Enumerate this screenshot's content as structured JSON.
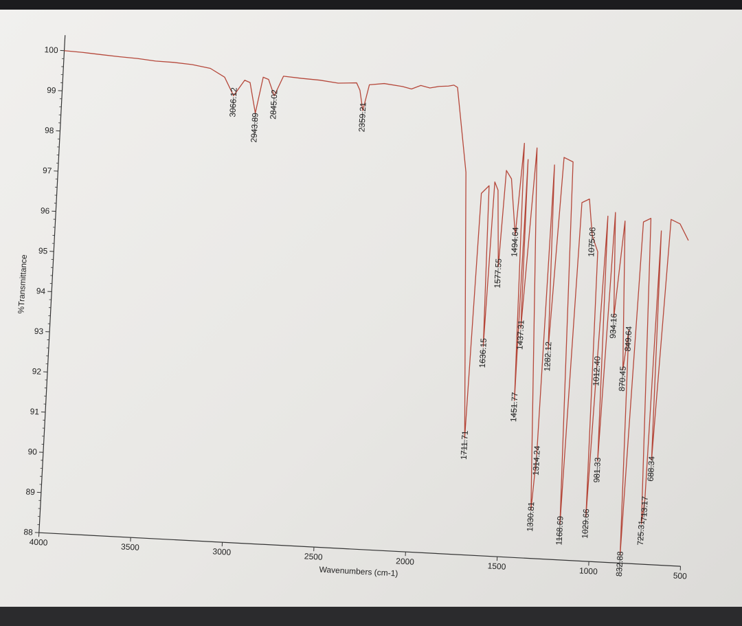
{
  "chart_data": {
    "type": "line",
    "title": "",
    "xlabel": "Wavenumbers (cm-1)",
    "ylabel": "%Transmittance",
    "xlim": [
      4000,
      500
    ],
    "ylim": [
      88,
      100.3
    ],
    "x_ticks": [
      "4000",
      "3500",
      "3000",
      "2500",
      "2000",
      "1500",
      "1000",
      "500"
    ],
    "y_ticks": [
      "100",
      "99",
      "98",
      "97",
      "96",
      "95",
      "94",
      "93",
      "92",
      "91",
      "90",
      "89",
      "88"
    ],
    "grid": false,
    "series": [
      {
        "color": "#b5473a",
        "x": [
          4000,
          3900,
          3800,
          3700,
          3600,
          3500,
          3400,
          3300,
          3200,
          3120,
          3066,
          3010,
          2980,
          2943,
          2910,
          2880,
          2845,
          2800,
          2700,
          2600,
          2500,
          2400,
          2380,
          2359,
          2330,
          2250,
          2150,
          2100,
          2050,
          2000,
          1950,
          1900,
          1870,
          1850,
          1780,
          1711,
          1690,
          1650,
          1636,
          1620,
          1600,
          1577,
          1560,
          1530,
          1494,
          1470,
          1451,
          1445,
          1437,
          1400,
          1330,
          1314,
          1300,
          1282,
          1250,
          1200,
          1168,
          1140,
          1100,
          1075,
          1040,
          1029,
          1012,
          995,
          981,
          955,
          934,
          900,
          870,
          849,
          832,
          800,
          760,
          725,
          713,
          700,
          688,
          650,
          600,
          550
        ],
        "y": [
          100.0,
          99.98,
          99.95,
          99.92,
          99.9,
          99.86,
          99.85,
          99.82,
          99.75,
          99.55,
          99.1,
          99.5,
          99.45,
          98.7,
          99.6,
          99.55,
          99.15,
          99.65,
          99.62,
          99.6,
          99.55,
          99.58,
          99.4,
          98.9,
          99.55,
          99.6,
          99.55,
          99.5,
          99.6,
          99.55,
          99.6,
          99.62,
          99.65,
          99.6,
          97.5,
          90.9,
          97.0,
          97.2,
          93.2,
          97.3,
          97.1,
          95.2,
          97.6,
          97.4,
          96.0,
          98.3,
          91.9,
          97.9,
          93.7,
          98.2,
          89.2,
          90.6,
          97.8,
          93.2,
          98.0,
          97.9,
          88.9,
          96.9,
          97.0,
          96.1,
          95.7,
          89.1,
          92.9,
          96.6,
          90.5,
          96.7,
          94.1,
          96.5,
          92.8,
          93.8,
          88.2,
          96.5,
          96.6,
          89.0,
          89.6,
          96.3,
          90.6,
          96.6,
          96.5,
          96.1
        ]
      }
    ],
    "annotations": [
      {
        "text": "3066.12",
        "x": 3066,
        "level": 98.6
      },
      {
        "text": "2943.89",
        "x": 2943,
        "level": 98.0
      },
      {
        "text": "2845.02",
        "x": 2845,
        "level": 98.6
      },
      {
        "text": "2359.21",
        "x": 2359,
        "level": 98.4
      },
      {
        "text": "1711.71",
        "x": 1711,
        "level": 90.4
      },
      {
        "text": "1636.15",
        "x": 1636,
        "level": 92.7
      },
      {
        "text": "1577.55",
        "x": 1577,
        "level": 94.7
      },
      {
        "text": "1494.64",
        "x": 1494,
        "level": 95.5
      },
      {
        "text": "1451.77",
        "x": 1451,
        "level": 91.4
      },
      {
        "text": "1437.31",
        "x": 1437,
        "level": 93.2
      },
      {
        "text": "1330.81",
        "x": 1330,
        "level": 88.7
      },
      {
        "text": "1314.24",
        "x": 1314,
        "level": 90.1
      },
      {
        "text": "1282.12",
        "x": 1282,
        "level": 92.7
      },
      {
        "text": "1168.69",
        "x": 1168,
        "level": 88.4
      },
      {
        "text": "1075.06",
        "x": 1075,
        "level": 95.6
      },
      {
        "text": "1029.66",
        "x": 1029,
        "level": 88.6
      },
      {
        "text": "1012.40",
        "x": 1012,
        "level": 92.4
      },
      {
        "text": "981.33",
        "x": 981,
        "level": 90.0
      },
      {
        "text": "934.16",
        "x": 934,
        "level": 93.6
      },
      {
        "text": "870.45",
        "x": 870,
        "level": 92.3
      },
      {
        "text": "849.64",
        "x": 849,
        "level": 93.3
      },
      {
        "text": "832.88",
        "x": 832,
        "level": 87.7
      },
      {
        "text": "725.31",
        "x": 725,
        "level": 88.5
      },
      {
        "text": "713.17",
        "x": 713,
        "level": 89.1
      },
      {
        "text": "688.34",
        "x": 688,
        "level": 90.1
      }
    ]
  }
}
